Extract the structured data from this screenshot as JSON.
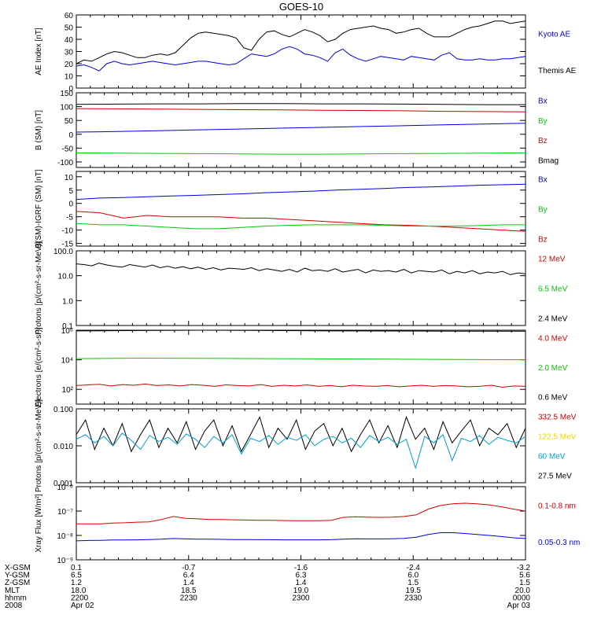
{
  "title": "GOES-10",
  "colors": {
    "black": "#000000",
    "blue": "#0000e0",
    "green": "#00cc00",
    "red": "#d00000",
    "cyan": "#00a0d8",
    "yellow": "#e8d800"
  },
  "chart_data": [
    {
      "type": "line",
      "ylabel": "AE Index [nT]",
      "ylim": [
        0,
        60
      ],
      "yscale": "linear",
      "yticks": [
        0,
        10,
        20,
        30,
        40,
        50,
        60
      ],
      "ytick_labels": [
        "0",
        "10",
        "20",
        "30",
        "40",
        "50",
        "60"
      ],
      "legend": [
        {
          "label": "Kyoto AE",
          "color": "blue"
        },
        {
          "label": "Themis AE",
          "color": "black"
        }
      ],
      "series": [
        {
          "name": "Themis AE",
          "color": "black",
          "values": [
            20,
            23,
            22,
            25,
            28,
            30,
            29,
            27,
            25,
            25,
            27,
            28,
            27,
            29,
            35,
            41,
            45,
            46,
            45,
            44,
            43,
            41,
            33,
            31,
            40,
            46,
            47,
            44,
            42,
            45,
            48,
            46,
            43,
            38,
            40,
            45,
            48,
            49,
            50,
            51,
            49,
            48,
            45,
            46,
            48,
            49,
            45,
            42,
            42,
            42,
            45,
            48,
            50,
            51,
            53,
            55,
            55,
            53,
            54,
            55
          ]
        },
        {
          "name": "Kyoto AE",
          "color": "blue",
          "values": [
            18,
            19,
            17,
            14,
            20,
            22,
            20,
            19,
            20,
            21,
            22,
            21,
            20,
            19,
            20,
            21,
            22,
            22,
            21,
            20,
            19,
            20,
            24,
            28,
            27,
            26,
            28,
            32,
            34,
            32,
            28,
            27,
            25,
            22,
            29,
            32,
            27,
            24,
            22,
            24,
            26,
            25,
            24,
            23,
            26,
            25,
            24,
            23,
            27,
            29,
            24,
            23,
            23,
            24,
            23,
            23,
            24,
            24,
            25,
            26
          ]
        }
      ]
    },
    {
      "type": "line",
      "ylabel": "B (SM) [nT]",
      "ylim": [
        -120,
        150
      ],
      "yscale": "linear",
      "yticks": [
        -100,
        -50,
        0,
        50,
        100,
        150
      ],
      "ytick_labels": [
        "-100",
        "-50",
        "0",
        "50",
        "100",
        "150"
      ],
      "legend": [
        {
          "label": "Bx",
          "color": "blue"
        },
        {
          "label": "By",
          "color": "green"
        },
        {
          "label": "Bz",
          "color": "red"
        },
        {
          "label": "Bmag",
          "color": "black"
        }
      ],
      "series": [
        {
          "name": "Bmag",
          "color": "black",
          "values": [
            108,
            109,
            110,
            110,
            111,
            111,
            110,
            110,
            109,
            108,
            107,
            107
          ]
        },
        {
          "name": "Bz",
          "color": "red",
          "values": [
            93,
            92,
            91,
            90,
            89,
            88,
            87,
            86,
            85,
            83,
            82,
            81
          ]
        },
        {
          "name": "Bx",
          "color": "blue",
          "values": [
            8,
            10,
            13,
            16,
            19,
            22,
            25,
            28,
            31,
            34,
            37,
            40
          ]
        },
        {
          "name": "By",
          "color": "green",
          "values": [
            -67,
            -68,
            -69,
            -70,
            -71,
            -72,
            -72,
            -71,
            -70,
            -69,
            -68,
            -67
          ]
        }
      ]
    },
    {
      "type": "line",
      "ylabel": "B(SM)-IGRF (SM) [nT]",
      "ylim": [
        -16,
        12
      ],
      "yscale": "linear",
      "yticks": [
        -15,
        -10,
        -5,
        0,
        5,
        10
      ],
      "ytick_labels": [
        "-15",
        "-10",
        "-5",
        "0",
        "5",
        "10"
      ],
      "legend": [
        {
          "label": "Bx",
          "color": "blue"
        },
        {
          "label": "By",
          "color": "green"
        },
        {
          "label": "Bz",
          "color": "red"
        }
      ],
      "series": [
        {
          "name": "Bx",
          "color": "blue",
          "values": [
            1.5,
            2,
            2.2,
            2.5,
            2.8,
            3,
            3.3,
            3.6,
            4,
            4.3,
            4.6,
            5,
            5.3,
            5.6,
            6,
            6.2,
            6.5,
            6.8,
            7,
            7.2
          ]
        },
        {
          "name": "Bz",
          "color": "red",
          "values": [
            -3,
            -3.5,
            -5.5,
            -4.5,
            -5,
            -5,
            -5,
            -5.5,
            -5.5,
            -6,
            -6.5,
            -7,
            -7.5,
            -8,
            -8.2,
            -8.5,
            -9,
            -9.5,
            -10,
            -10.5
          ]
        },
        {
          "name": "By",
          "color": "green",
          "values": [
            -7.5,
            -8,
            -8,
            -8.5,
            -9,
            -9.5,
            -9.5,
            -9,
            -8.5,
            -8.2,
            -8,
            -8,
            -8,
            -8.2,
            -8.5,
            -8.5,
            -8.5,
            -8.3,
            -8,
            -8
          ]
        }
      ]
    },
    {
      "type": "line",
      "ylabel": "Protons [p/(cm²-s-sr-MeV)]",
      "ylim": [
        0.1,
        100
      ],
      "yscale": "log",
      "yticks": [
        0.1,
        1,
        10,
        100
      ],
      "ytick_labels": [
        "0.1",
        "1.0",
        "10.0",
        "100.0"
      ],
      "legend": [
        {
          "label": "12 MeV",
          "color": "red"
        },
        {
          "label": "6.5 MeV",
          "color": "green"
        },
        {
          "label": "2.4 MeV",
          "color": "black"
        }
      ],
      "series": [
        {
          "name": "2.4 MeV",
          "color": "black",
          "values": [
            30,
            28,
            25,
            32,
            27,
            24,
            22,
            28,
            25,
            22,
            27,
            21,
            24,
            20,
            23,
            19,
            22,
            18,
            21,
            17,
            20,
            19,
            18,
            21,
            16,
            19,
            17,
            15,
            18,
            14,
            20,
            16,
            17,
            15,
            19,
            14,
            16,
            18,
            13,
            17,
            15,
            16,
            14,
            18,
            13,
            16,
            15,
            14,
            17,
            12,
            15,
            13,
            16,
            12,
            14,
            13,
            15,
            11,
            13,
            12
          ]
        }
      ]
    },
    {
      "type": "line",
      "ylabel": "Electrons [e/(cm²-s-sr)]",
      "ylim": [
        10,
        1000000
      ],
      "yscale": "log",
      "yticks": [
        100,
        10000,
        1000000
      ],
      "ytick_labels": [
        "10²",
        "10⁴",
        "10⁶"
      ],
      "legend": [
        {
          "label": "4.0 MeV",
          "color": "red"
        },
        {
          "label": "2.0 MeV",
          "color": "green"
        },
        {
          "label": "0.6 MeV",
          "color": "black"
        }
      ],
      "series": [
        {
          "name": "0.6 MeV",
          "color": "black",
          "values": [
            900000,
            950000,
            1000000,
            950000,
            900000,
            880000,
            860000,
            850000
          ]
        },
        {
          "name": "2.0 MeV",
          "color": "green",
          "values": [
            12000,
            13000,
            12500,
            12000,
            11500,
            11000,
            10500,
            10000
          ]
        },
        {
          "name": "4.0 MeV",
          "color": "red",
          "values": [
            180,
            200,
            220,
            170,
            210,
            190,
            230,
            180,
            200,
            170,
            210,
            190,
            160,
            200,
            180,
            170,
            210,
            160,
            190,
            170,
            200,
            160,
            180,
            150,
            190,
            170,
            160,
            180,
            150,
            170,
            190,
            160,
            180,
            170,
            150,
            160,
            190,
            140,
            170,
            160
          ]
        }
      ]
    },
    {
      "type": "line",
      "ylabel": "Protons [p/(cm²-s-sr-MeV)]",
      "ylim": [
        0.001,
        0.1
      ],
      "yscale": "log",
      "yticks": [
        0.001,
        0.01,
        0.1
      ],
      "ytick_labels": [
        "0.001",
        "0.010",
        "0.100"
      ],
      "legend": [
        {
          "label": "332.5 MeV",
          "color": "red"
        },
        {
          "label": "122.5 MeV",
          "color": "yellow"
        },
        {
          "label": "60 MeV",
          "color": "cyan"
        },
        {
          "label": "27.5 MeV",
          "color": "black"
        }
      ],
      "series": [
        {
          "name": "27.5 MeV",
          "color": "black",
          "values": [
            0.02,
            0.05,
            0.008,
            0.03,
            0.01,
            0.04,
            0.007,
            0.02,
            0.05,
            0.009,
            0.03,
            0.012,
            0.045,
            0.008,
            0.025,
            0.05,
            0.01,
            0.035,
            0.007,
            0.02,
            0.06,
            0.009,
            0.03,
            0.015,
            0.05,
            0.008,
            0.025,
            0.04,
            0.01,
            0.03,
            0.007,
            0.02,
            0.05,
            0.012,
            0.035,
            0.009,
            0.06,
            0.015,
            0.03,
            0.008,
            0.045,
            0.012,
            0.025,
            0.05,
            0.01,
            0.03,
            0.02,
            0.04,
            0.009,
            0.03
          ]
        },
        {
          "name": "60 MeV",
          "color": "cyan",
          "values": [
            0.015,
            0.02,
            0.012,
            0.018,
            0.01,
            0.022,
            0.014,
            0.008,
            0.019,
            0.013,
            0.017,
            0.011,
            0.021,
            0.015,
            0.009,
            0.018,
            0.012,
            0.02,
            0.006,
            0.016,
            0.013,
            0.019,
            0.011,
            0.017,
            0.014,
            0.02,
            0.01,
            0.015,
            0.018,
            0.012,
            0.016,
            0.009,
            0.019,
            0.013,
            0.017,
            0.011,
            0.015,
            0.0025,
            0.018,
            0.012,
            0.02,
            0.004,
            0.016,
            0.013,
            0.019,
            0.011,
            0.017,
            0.014,
            0.012,
            0.018
          ]
        }
      ]
    },
    {
      "type": "line",
      "ylabel": "Xray Flux [W/m²]",
      "ylim": [
        1e-09,
        1e-06
      ],
      "yscale": "log",
      "yticks": [
        1e-09,
        1e-08,
        1e-07,
        1e-06
      ],
      "ytick_labels": [
        "10⁻⁹",
        "10⁻⁸",
        "10⁻⁷",
        "10⁻⁶"
      ],
      "legend": [
        {
          "label": "0.1-0.8 nm",
          "color": "red"
        },
        {
          "label": "0.05-0.3 nm",
          "color": "blue"
        }
      ],
      "series": [
        {
          "name": "0.1-0.8 nm",
          "color": "red",
          "values": [
            3e-08,
            3e-08,
            3e-08,
            3.2e-08,
            3.3e-08,
            3.5e-08,
            3.6e-08,
            4.5e-08,
            6e-08,
            5e-08,
            4.8e-08,
            4.5e-08,
            4.5e-08,
            4.4e-08,
            4.3e-08,
            4.2e-08,
            4.2e-08,
            4.1e-08,
            4e-08,
            4e-08,
            4e-08,
            4.2e-08,
            5.5e-08,
            5.8e-08,
            5.6e-08,
            5.5e-08,
            5.6e-08,
            6e-08,
            7e-08,
            1.2e-07,
            1.7e-07,
            2e-07,
            2.1e-07,
            2e-07,
            1.8e-07,
            1.5e-07,
            1.2e-07,
            1e-07
          ]
        },
        {
          "name": "0.05-0.3 nm",
          "color": "blue",
          "values": [
            6e-09,
            6.2e-09,
            6.3e-09,
            6.5e-09,
            6.5e-09,
            6.6e-09,
            6.8e-09,
            7e-09,
            7.5e-09,
            7.2e-09,
            7e-09,
            7e-09,
            6.9e-09,
            6.8e-09,
            6.8e-09,
            6.7e-09,
            6.7e-09,
            6.6e-09,
            6.6e-09,
            6.6e-09,
            6.6e-09,
            6.7e-09,
            7e-09,
            7.3e-09,
            7.2e-09,
            7.2e-09,
            7.3e-09,
            7.6e-09,
            8.5e-09,
            1.1e-08,
            1.3e-08,
            1.3e-08,
            1.2e-08,
            1.1e-08,
            1e-08,
            9e-09,
            8e-09,
            7.5e-09
          ]
        }
      ]
    }
  ],
  "xaxis": {
    "rows": [
      {
        "label": "X-GSM",
        "values": [
          "0.1",
          "-0.7",
          "-1.6",
          "-2.4",
          "-3.2"
        ]
      },
      {
        "label": "Y-GSM",
        "values": [
          "6.5",
          "6.4",
          "6.3",
          "6.0",
          "5.6"
        ]
      },
      {
        "label": "Z-GSM",
        "values": [
          "1.2",
          "1.4",
          "1.4",
          "1.5",
          "1.5"
        ]
      },
      {
        "label": "MLT",
        "values": [
          "18.0",
          "18.5",
          "19.0",
          "19.5",
          "20.0"
        ]
      },
      {
        "label": "hhmm",
        "values": [
          "2200",
          "2230",
          "2300",
          "2330",
          "0000"
        ]
      },
      {
        "label": "2008",
        "values": [
          "Apr 02",
          "",
          "",
          "",
          "Apr 03"
        ]
      }
    ]
  }
}
